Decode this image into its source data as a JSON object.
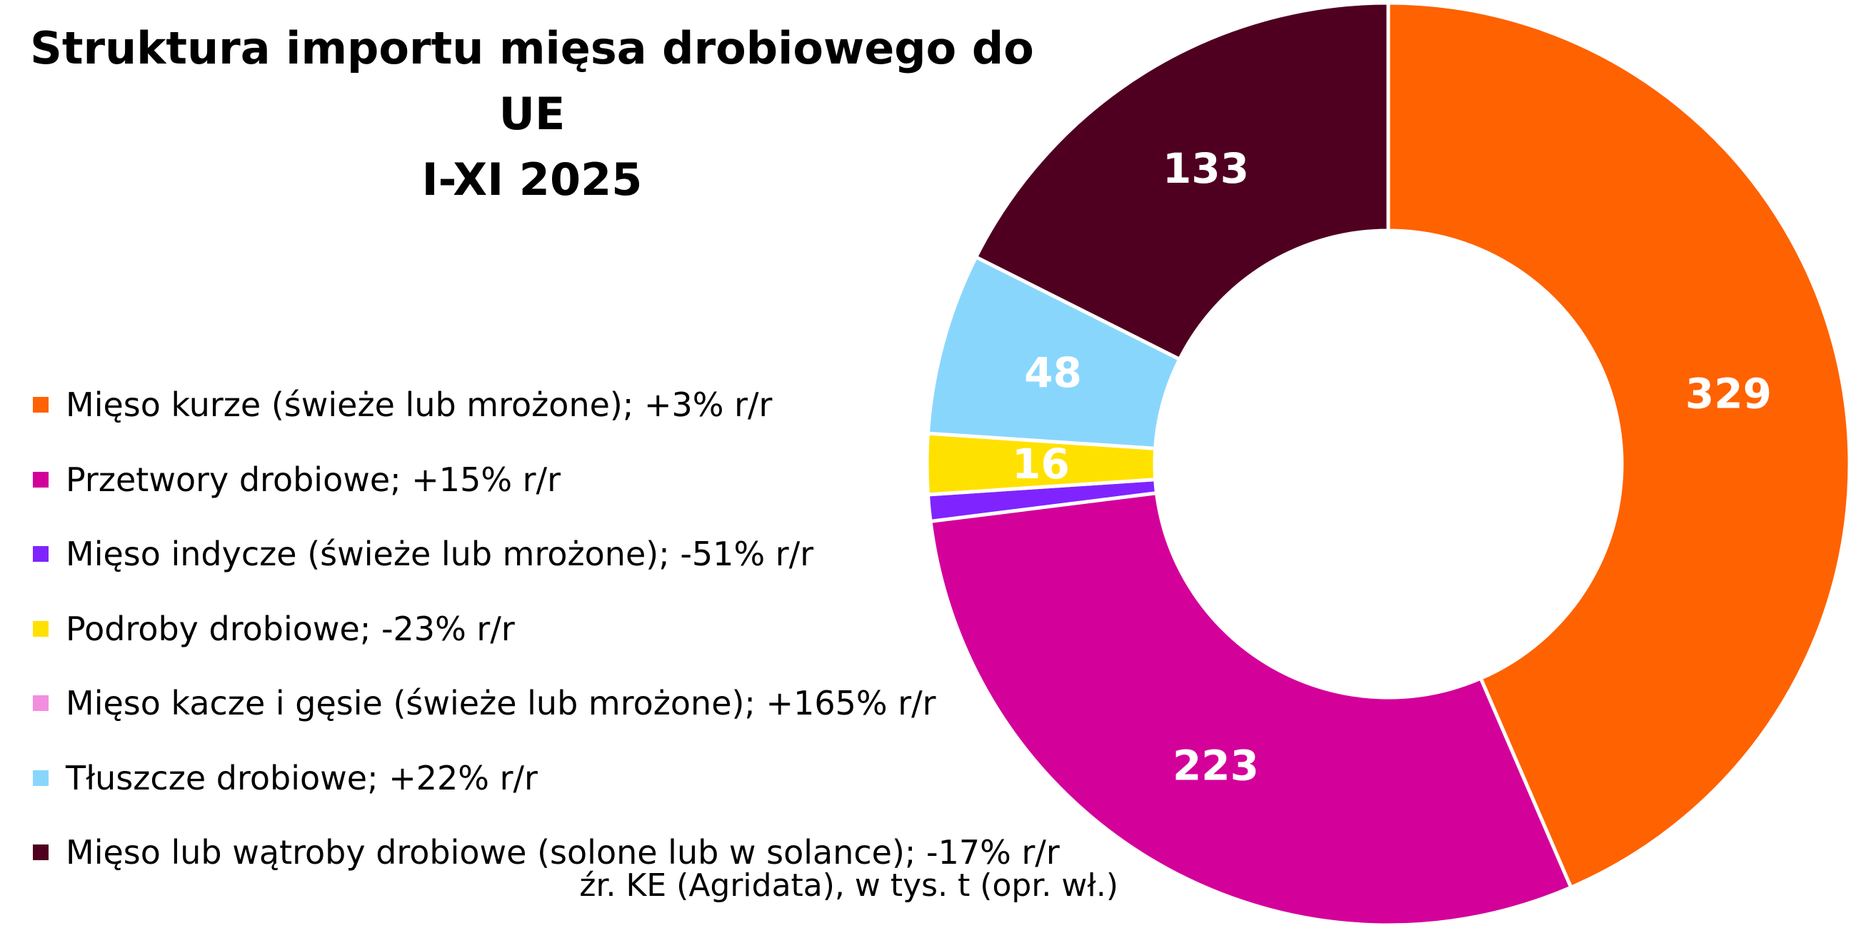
{
  "chart_data": {
    "type": "pie",
    "variant": "donut",
    "title": [
      "Struktura importu mięsa drobiowego do UE",
      "I-XI 2025"
    ],
    "legend_position": "left",
    "source": "źr. KE (Agridata), w tys. t (opr. wł.)",
    "slices": [
      {
        "name": "Mięso kurze (świeże lub mrożone); +3% r/r",
        "value": 329,
        "label": "329",
        "color": "#FF6200"
      },
      {
        "name": "Przetwory drobiowe; +15% r/r",
        "value": 223,
        "label": "223",
        "color": "#D3009A"
      },
      {
        "name": "Mięso indycze (świeże lub mrożone); -51% r/r",
        "value": 7,
        "label": "",
        "color": "#7F24FF"
      },
      {
        "name": "Podroby drobiowe; -23% r/r",
        "value": 16,
        "label": "16",
        "color": "#FFE100"
      },
      {
        "name": "Mięso kacze i gęsie (świeże lub mrożone); +165% r/r",
        "value": 0,
        "label": "",
        "color": "#F28EE0"
      },
      {
        "name": "Tłuszcze drobiowe; +22% r/r",
        "value": 48,
        "label": "48",
        "color": "#89D6FD"
      },
      {
        "name": "Mięso lub wątroby drobiowe (solone lub w solance); -17% r/r",
        "value": 133,
        "label": "133",
        "color": "#4F0020"
      }
    ]
  }
}
